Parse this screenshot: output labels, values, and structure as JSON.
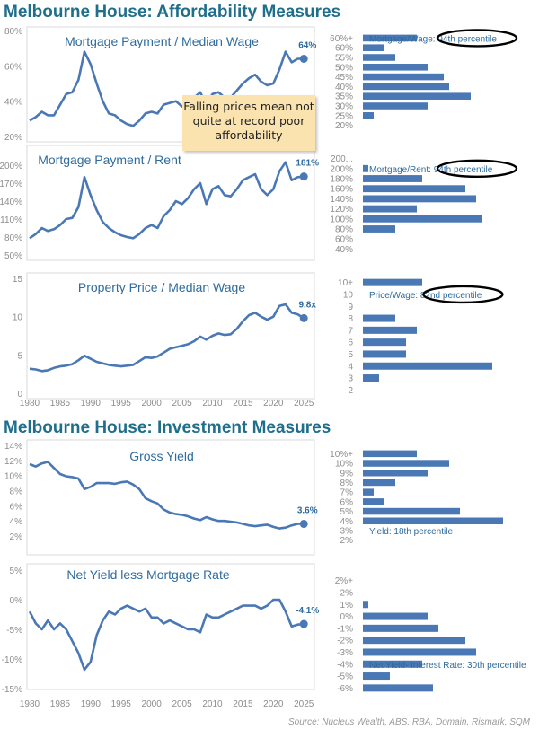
{
  "titles": {
    "affordability": "Melbourne House: Affordability Measures",
    "investment": "Melbourne House: Investment Measures"
  },
  "annotation": "Falling prices mean not quite at record poor affordability",
  "source": "Source: Nucleus Wealth, ABS, RBA, Domain, Rismark, SQM",
  "colors": {
    "line": "#4a78b5",
    "bar": "#4a78b5",
    "title": "#1f6e8c",
    "ink": "#000000",
    "note": "#fbe3b0"
  },
  "chart_data": [
    {
      "type": "line",
      "title": "Mortgage Payment / Median Wage",
      "ylim": [
        20,
        80
      ],
      "yticks": [
        "20%",
        "40%",
        "60%",
        "80%"
      ],
      "ytick_values": [
        20,
        40,
        60,
        80
      ],
      "xlim": [
        1980,
        2026
      ],
      "end_label": "64%",
      "x": [
        1980,
        1981,
        1982,
        1983,
        1984,
        1985,
        1986,
        1987,
        1988,
        1989,
        1990,
        1991,
        1992,
        1993,
        1994,
        1995,
        1996,
        1997,
        1998,
        1999,
        2000,
        2001,
        2002,
        2003,
        2004,
        2005,
        2006,
        2007,
        2008,
        2009,
        2010,
        2011,
        2012,
        2013,
        2014,
        2015,
        2016,
        2017,
        2018,
        2019,
        2020,
        2021,
        2022,
        2023,
        2024,
        2025
      ],
      "y": [
        29,
        31,
        34,
        32,
        32,
        38,
        44,
        45,
        52,
        68,
        61,
        50,
        40,
        33,
        32,
        29,
        27,
        26,
        29,
        33,
        34,
        33,
        38,
        39,
        40,
        37,
        40,
        42,
        45,
        38,
        44,
        45,
        42,
        42,
        46,
        50,
        53,
        55,
        51,
        49,
        50,
        58,
        68,
        62,
        64,
        64
      ]
    },
    {
      "type": "line",
      "title": "Mortgage Payment / Rent",
      "ylim": [
        50,
        200
      ],
      "yticks": [
        "50%",
        "80%",
        "110%",
        "140%",
        "170%",
        "200%"
      ],
      "ytick_values": [
        50,
        80,
        110,
        140,
        170,
        200
      ],
      "xlim": [
        1980,
        2026
      ],
      "end_label": "181%",
      "x": [
        1980,
        1981,
        1982,
        1983,
        1984,
        1985,
        1986,
        1987,
        1988,
        1989,
        1990,
        1991,
        1992,
        1993,
        1994,
        1995,
        1996,
        1997,
        1998,
        1999,
        2000,
        2001,
        2002,
        2003,
        2004,
        2005,
        2006,
        2007,
        2008,
        2009,
        2010,
        2011,
        2012,
        2013,
        2014,
        2015,
        2016,
        2017,
        2018,
        2019,
        2020,
        2021,
        2022,
        2023,
        2024,
        2025
      ],
      "y": [
        78,
        85,
        95,
        90,
        93,
        100,
        110,
        112,
        130,
        180,
        150,
        125,
        105,
        95,
        88,
        83,
        80,
        78,
        85,
        95,
        100,
        95,
        115,
        125,
        140,
        135,
        145,
        160,
        170,
        135,
        160,
        165,
        150,
        148,
        160,
        175,
        180,
        185,
        160,
        150,
        160,
        190,
        205,
        175,
        180,
        181
      ]
    },
    {
      "type": "line",
      "title": "Property Price / Median Wage",
      "ylim": [
        0,
        15
      ],
      "yticks": [
        "0",
        "5",
        "10",
        "15"
      ],
      "ytick_values": [
        0,
        5,
        10,
        15
      ],
      "xlim": [
        1980,
        2026
      ],
      "end_label": "9.8x",
      "xticks": [
        "1980",
        "1985",
        "1990",
        "1995",
        "2000",
        "2005",
        "2010",
        "2015",
        "2020",
        "2025"
      ],
      "xtick_values": [
        1980,
        1985,
        1990,
        1995,
        2000,
        2005,
        2010,
        2015,
        2020,
        2025
      ],
      "x": [
        1980,
        1981,
        1982,
        1983,
        1984,
        1985,
        1986,
        1987,
        1988,
        1989,
        1990,
        1991,
        1992,
        1993,
        1994,
        1995,
        1996,
        1997,
        1998,
        1999,
        2000,
        2001,
        2002,
        2003,
        2004,
        2005,
        2006,
        2007,
        2008,
        2009,
        2010,
        2011,
        2012,
        2013,
        2014,
        2015,
        2016,
        2017,
        2018,
        2019,
        2020,
        2021,
        2022,
        2023,
        2024,
        2025
      ],
      "y": [
        3.2,
        3.1,
        2.9,
        3.0,
        3.3,
        3.5,
        3.6,
        3.8,
        4.3,
        4.9,
        4.5,
        4.1,
        3.9,
        3.7,
        3.6,
        3.5,
        3.6,
        3.7,
        4.2,
        4.7,
        4.6,
        4.8,
        5.3,
        5.8,
        6.0,
        6.2,
        6.4,
        6.8,
        7.4,
        7.0,
        7.5,
        7.8,
        7.6,
        7.7,
        8.4,
        9.4,
        10.2,
        10.5,
        10.0,
        9.6,
        10.0,
        11.4,
        11.6,
        10.5,
        10.3,
        9.8
      ]
    },
    {
      "type": "line",
      "title": "Gross Yield",
      "ylim": [
        2,
        14
      ],
      "yticks": [
        "2%",
        "4%",
        "6%",
        "8%",
        "10%",
        "12%",
        "14%"
      ],
      "ytick_values": [
        2,
        4,
        6,
        8,
        10,
        12,
        14
      ],
      "xlim": [
        1980,
        2026
      ],
      "end_label": "3.6%",
      "x": [
        1980,
        1981,
        1982,
        1983,
        1984,
        1985,
        1986,
        1987,
        1988,
        1989,
        1990,
        1991,
        1992,
        1993,
        1994,
        1995,
        1996,
        1997,
        1998,
        1999,
        2000,
        2001,
        2002,
        2003,
        2004,
        2005,
        2006,
        2007,
        2008,
        2009,
        2010,
        2011,
        2012,
        2013,
        2014,
        2015,
        2016,
        2017,
        2018,
        2019,
        2020,
        2021,
        2022,
        2023,
        2024,
        2025
      ],
      "y": [
        11.5,
        11.2,
        11.6,
        11.8,
        11.0,
        10.2,
        9.9,
        9.8,
        9.6,
        8.2,
        8.5,
        9.0,
        9.0,
        9.0,
        8.9,
        9.1,
        9.2,
        8.8,
        8.2,
        7.0,
        6.6,
        6.3,
        5.5,
        5.1,
        4.9,
        4.8,
        4.6,
        4.3,
        4.1,
        4.5,
        4.2,
        4.0,
        4.0,
        3.9,
        3.8,
        3.6,
        3.4,
        3.3,
        3.4,
        3.5,
        3.2,
        3.0,
        3.1,
        3.4,
        3.6,
        3.6
      ]
    },
    {
      "type": "line",
      "title": "Net Yield less Mortgage Rate",
      "ylim": [
        -15,
        5
      ],
      "yticks": [
        "-15%",
        "-10%",
        "-5%",
        "0%",
        "5%"
      ],
      "ytick_values": [
        -15,
        -10,
        -5,
        0,
        5
      ],
      "xlim": [
        1980,
        2026
      ],
      "end_label": "-4.1%",
      "xticks": [
        "1980",
        "1985",
        "1990",
        "1995",
        "2000",
        "2005",
        "2010",
        "2015",
        "2020",
        "2025"
      ],
      "xtick_values": [
        1980,
        1985,
        1990,
        1995,
        2000,
        2005,
        2010,
        2015,
        2020,
        2025
      ],
      "x": [
        1980,
        1981,
        1982,
        1983,
        1984,
        1985,
        1986,
        1987,
        1988,
        1989,
        1990,
        1991,
        1992,
        1993,
        1994,
        1995,
        1996,
        1997,
        1998,
        1999,
        2000,
        2001,
        2002,
        2003,
        2004,
        2005,
        2006,
        2007,
        2008,
        2009,
        2010,
        2011,
        2012,
        2013,
        2014,
        2015,
        2016,
        2017,
        2018,
        2019,
        2020,
        2021,
        2022,
        2023,
        2024,
        2025
      ],
      "y": [
        -2,
        -4,
        -5,
        -3.5,
        -5,
        -4,
        -5,
        -7,
        -9,
        -11.8,
        -10.5,
        -6,
        -3.5,
        -2,
        -2.5,
        -1.5,
        -1,
        -1.5,
        -2,
        -1.5,
        -3,
        -3,
        -4,
        -3.5,
        -4,
        -4.5,
        -5,
        -5,
        -5.5,
        -2.5,
        -3,
        -3,
        -2.5,
        -2,
        -1.5,
        -1,
        -1,
        -1,
        -1.5,
        -1,
        0,
        0,
        -2,
        -4.5,
        -4.2,
        -4.1
      ]
    },
    {
      "type": "bar",
      "orientation": "horizontal",
      "title": "",
      "categories": [
        "60%+",
        "60%",
        "55%",
        "50%",
        "45%",
        "40%",
        "35%",
        "30%",
        "25%",
        "20%"
      ],
      "values": [
        10,
        4,
        6,
        12,
        15,
        16,
        20,
        12,
        2,
        0
      ],
      "annotation": "Mortgage/Wage: 94th percentile",
      "highlight_row": 0
    },
    {
      "type": "bar",
      "orientation": "horizontal",
      "title": "",
      "categories": [
        "200...",
        "200%",
        "180%",
        "160%",
        "140%",
        "120%",
        "100%",
        "80%",
        "60%",
        "40%"
      ],
      "values": [
        0,
        1,
        11,
        19,
        21,
        10,
        22,
        6,
        0,
        0
      ],
      "annotation": "Mortgage/Rent: 94th percentile",
      "highlight_row": 1
    },
    {
      "type": "bar",
      "orientation": "horizontal",
      "title": "",
      "categories": [
        "10+",
        "10",
        "9",
        "8",
        "7",
        "6",
        "5",
        "4",
        "3",
        "2"
      ],
      "values": [
        11,
        0,
        0,
        6,
        10,
        8,
        8,
        24,
        3,
        0
      ],
      "annotation": "Price/Wage: 82nd percentile",
      "highlight_row": 1
    },
    {
      "type": "bar",
      "orientation": "horizontal",
      "title": "",
      "categories": [
        "10%+",
        "10%",
        "9%",
        "8%",
        "7%",
        "6%",
        "5%",
        "4%",
        "3%",
        "2%"
      ],
      "values": [
        10,
        16,
        12,
        6,
        2,
        4,
        18,
        26,
        0,
        0
      ],
      "annotation": "Yield: 18th percentile",
      "highlight_row": 8
    },
    {
      "type": "bar",
      "orientation": "horizontal",
      "title": "",
      "categories": [
        "2%+",
        "2%",
        "1%",
        "0%",
        "-1%",
        "-2%",
        "-3%",
        "-4%",
        "-5%",
        "-6%"
      ],
      "values": [
        0,
        0,
        1,
        12,
        14,
        19,
        21,
        11,
        5,
        13
      ],
      "annotation": "Net Yield- Interest Rate: 30th percentile",
      "highlight_row": 7
    }
  ]
}
